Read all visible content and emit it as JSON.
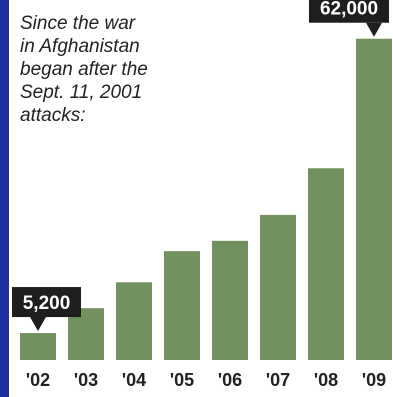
{
  "caption": "Since the war\nin Afghanistan\nbegan after the\nSept. 11, 2001\nattacks:",
  "colors": {
    "bar": "#73915e",
    "callout": "#1e1e1e",
    "frame": "#1c2fa0"
  },
  "chart_data": {
    "type": "bar",
    "title": "",
    "xlabel": "",
    "ylabel": "",
    "categories": [
      "'02",
      "'03",
      "'04",
      "'05",
      "'06",
      "'07",
      "'08",
      "'09"
    ],
    "values": [
      5200,
      10000,
      15000,
      21000,
      23000,
      28000,
      37000,
      62000
    ],
    "ylim": [
      0,
      66000
    ],
    "data_labels": [
      {
        "category": "'02",
        "text": "5,200"
      },
      {
        "category": "'09",
        "text": "62,000"
      }
    ],
    "grid": false,
    "legend": "none"
  }
}
